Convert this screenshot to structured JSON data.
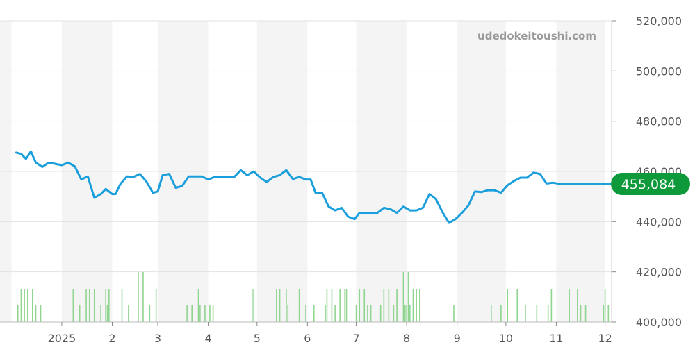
{
  "watermark": "udedokeitoushi.com",
  "current_price_label": "455,084",
  "colors": {
    "price_line": "#1a9fdc",
    "volume_bar": "#8fd48f",
    "badge": "#0e9a3a",
    "band_shade": "#f4f4f4",
    "grid": "#e2e2e2"
  },
  "chart_data": {
    "type": "line",
    "title": "",
    "xlabel": "",
    "ylabel": "",
    "ylim": [
      400000,
      520000
    ],
    "y_ticks": [
      "400,000",
      "420,000",
      "440,000",
      "460,000",
      "480,000",
      "500,000",
      "520,000"
    ],
    "x_ticks": [
      "2025",
      "2",
      "3",
      "4",
      "5",
      "6",
      "7",
      "8",
      "9",
      "10",
      "11",
      "12"
    ],
    "grid": true,
    "series": [
      {
        "role": "price",
        "x": [
          "2024-12-04",
          "2024-12-07",
          "2024-12-10",
          "2024-12-13",
          "2024-12-16",
          "2024-12-20",
          "2024-12-24",
          "2024-12-28",
          "2025-01-01",
          "2025-01-05",
          "2025-01-09",
          "2025-01-13",
          "2025-01-17",
          "2025-01-21",
          "2025-01-25",
          "2025-01-28",
          "2025-02-01",
          "2025-02-03",
          "2025-02-06",
          "2025-02-10",
          "2025-02-14",
          "2025-02-18",
          "2025-02-22",
          "2025-02-26",
          "2025-03-01",
          "2025-03-04",
          "2025-03-08",
          "2025-03-12",
          "2025-03-16",
          "2025-03-20",
          "2025-03-24",
          "2025-03-28",
          "2025-04-01",
          "2025-04-05",
          "2025-04-09",
          "2025-04-13",
          "2025-04-17",
          "2025-04-21",
          "2025-04-25",
          "2025-04-29",
          "2025-05-03",
          "2025-05-07",
          "2025-05-11",
          "2025-05-15",
          "2025-05-19",
          "2025-05-23",
          "2025-05-27",
          "2025-05-31",
          "2025-06-03",
          "2025-06-06",
          "2025-06-10",
          "2025-06-14",
          "2025-06-18",
          "2025-06-22",
          "2025-06-26",
          "2025-06-30",
          "2025-07-03",
          "2025-07-06",
          "2025-07-10",
          "2025-07-14",
          "2025-07-18",
          "2025-07-22",
          "2025-07-26",
          "2025-07-30",
          "2025-08-03",
          "2025-08-07",
          "2025-08-11",
          "2025-08-15",
          "2025-08-19",
          "2025-08-23",
          "2025-08-27",
          "2025-08-31",
          "2025-09-04",
          "2025-09-08",
          "2025-09-12",
          "2025-09-16",
          "2025-09-20",
          "2025-09-24",
          "2025-09-28",
          "2025-10-02",
          "2025-10-06",
          "2025-10-10",
          "2025-10-14",
          "2025-10-18",
          "2025-10-22",
          "2025-10-26",
          "2025-10-30",
          "2025-11-03",
          "2025-11-07",
          "2025-11-11",
          "2025-11-15",
          "2025-11-19",
          "2025-11-23",
          "2025-11-27",
          "2025-12-01",
          "2025-12-04"
        ],
        "values": [
          467500,
          467000,
          465000,
          468000,
          463500,
          461800,
          463500,
          463000,
          462500,
          463500,
          462000,
          456800,
          458000,
          449500,
          451000,
          453000,
          451000,
          451000,
          455000,
          458000,
          457800,
          459000,
          456000,
          451500,
          452000,
          458500,
          459000,
          453500,
          454200,
          458000,
          458000,
          458000,
          456800,
          457800,
          457800,
          457800,
          457800,
          460500,
          458500,
          460000,
          457500,
          455800,
          457800,
          458500,
          460500,
          457000,
          457800,
          456800,
          456800,
          451500,
          451500,
          446000,
          444500,
          445500,
          442000,
          441000,
          443500,
          443500,
          443500,
          443500,
          445500,
          445000,
          443500,
          446000,
          444500,
          444500,
          445500,
          451000,
          449000,
          443800,
          439500,
          441000,
          443500,
          446500,
          452000,
          451800,
          452500,
          452500,
          451500,
          454500,
          456200,
          457500,
          457500,
          459500,
          459000,
          455200,
          455500,
          455084,
          455084,
          455084,
          455084,
          455084,
          455084,
          455084,
          455084,
          455084
        ]
      },
      {
        "role": "volume",
        "x": [
          "2024-12-05",
          "2024-12-07",
          "2024-12-09",
          "2024-12-11",
          "2024-12-14",
          "2024-12-16",
          "2024-12-19",
          "2025-01-08",
          "2025-01-12",
          "2025-01-16",
          "2025-01-18",
          "2025-01-21",
          "2025-01-25",
          "2025-01-28",
          "2025-01-29",
          "2025-01-30",
          "2025-02-07",
          "2025-02-11",
          "2025-02-17",
          "2025-02-20",
          "2025-02-24",
          "2025-02-28",
          "2025-03-19",
          "2025-03-22",
          "2025-03-26",
          "2025-03-27",
          "2025-03-30",
          "2025-04-02",
          "2025-04-04",
          "2025-04-28",
          "2025-04-29",
          "2025-05-13",
          "2025-05-15",
          "2025-05-19",
          "2025-05-20",
          "2025-05-27",
          "2025-05-31",
          "2025-06-05",
          "2025-06-12",
          "2025-06-13",
          "2025-06-16",
          "2025-06-18",
          "2025-06-21",
          "2025-06-24",
          "2025-06-25",
          "2025-07-01",
          "2025-07-03",
          "2025-07-06",
          "2025-07-08",
          "2025-07-10",
          "2025-07-16",
          "2025-07-18",
          "2025-07-21",
          "2025-07-24",
          "2025-07-26",
          "2025-07-30",
          "2025-07-31",
          "2025-08-01",
          "2025-08-02",
          "2025-08-03",
          "2025-08-05",
          "2025-08-07",
          "2025-08-09",
          "2025-08-30",
          "2025-09-22",
          "2025-09-28",
          "2025-10-02",
          "2025-10-08",
          "2025-10-13",
          "2025-10-20",
          "2025-10-27",
          "2025-10-29",
          "2025-11-09",
          "2025-11-14",
          "2025-11-16",
          "2025-11-19",
          "2025-11-30",
          "2025-12-01",
          "2025-12-03"
        ],
        "values": [
          2,
          4,
          4,
          4,
          4,
          2,
          2,
          4,
          2,
          4,
          4,
          4,
          2,
          4,
          2,
          4,
          4,
          2,
          6,
          6,
          2,
          4,
          2,
          2,
          4,
          2,
          2,
          2,
          2,
          4,
          4,
          4,
          4,
          4,
          2,
          4,
          2,
          2,
          2,
          4,
          4,
          2,
          4,
          4,
          4,
          2,
          4,
          4,
          2,
          2,
          2,
          4,
          4,
          2,
          4,
          6,
          2,
          2,
          6,
          2,
          4,
          4,
          4,
          2,
          2,
          2,
          4,
          4,
          2,
          2,
          2,
          4,
          4,
          4,
          2,
          2,
          2,
          4,
          2
        ]
      }
    ]
  }
}
